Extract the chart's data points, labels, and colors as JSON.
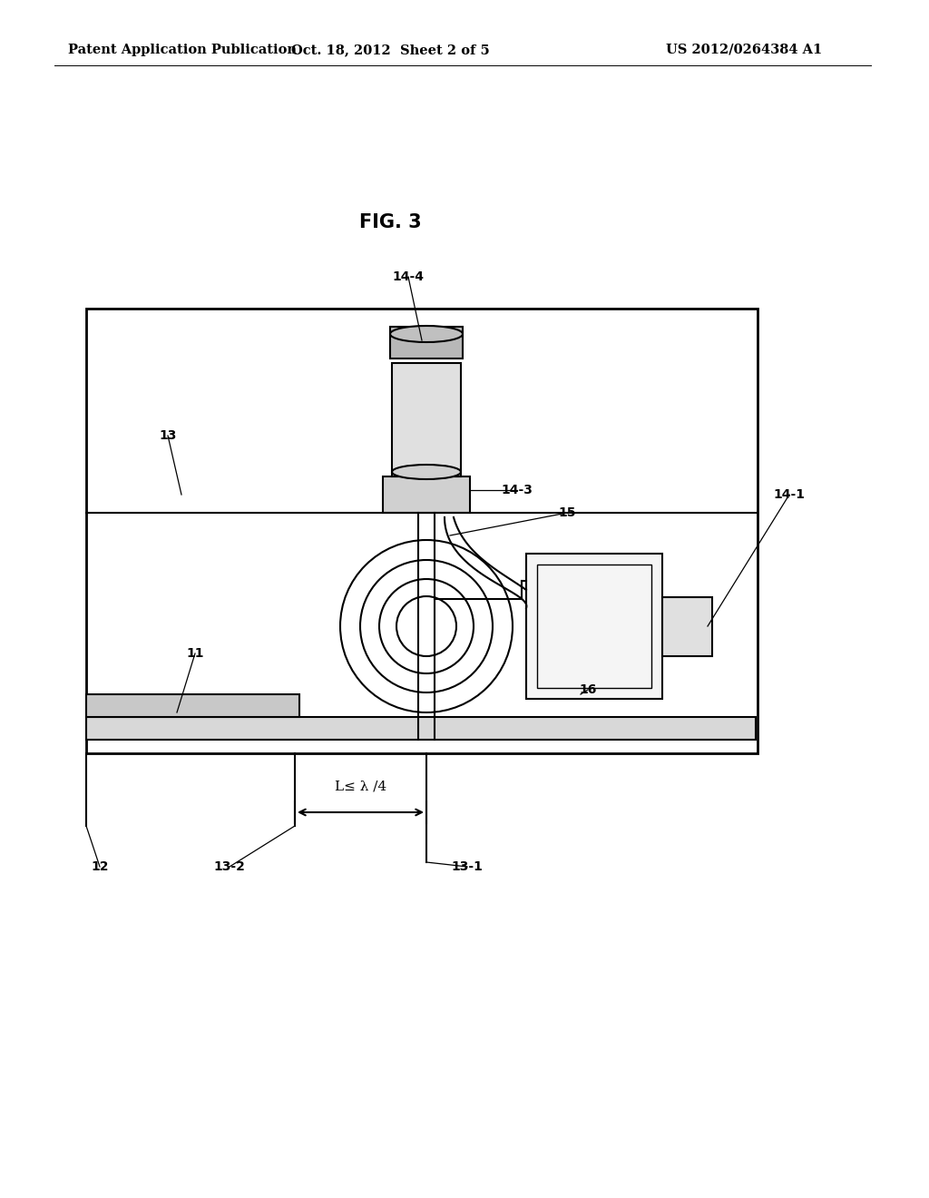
{
  "title": "FIG. 3",
  "header_left": "Patent Application Publication",
  "header_mid": "Oct. 18, 2012  Sheet 2 of 5",
  "header_right": "US 2012/0264384 A1",
  "bg_color": "#ffffff",
  "line_color": "#000000",
  "font_size_header": 10.5,
  "font_size_title": 15,
  "font_size_label": 10,
  "dimension_text": "L≤ λ /4"
}
